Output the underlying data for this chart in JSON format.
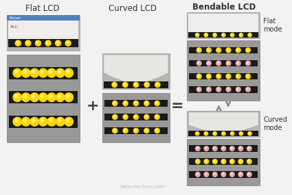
{
  "bg_color": "#f2f2f2",
  "flat_lcd_label": "Flat LCD",
  "curved_lcd_label": "Curved LCD",
  "bendable_lcd_label": "Bendable LCD",
  "flat_mode_label": "Flat\nmode",
  "curved_mode_label": "Curved\nmode",
  "panel_label": "Panel",
  "blu_label": "BLU",
  "yellow_color": "#FFD700",
  "pink_color": "#E8A8A8",
  "dark_strip_color": "#1a1a1a",
  "gray_plan_color": "#999999",
  "gray_sec_color": "#b5b5b5",
  "blue_panel_color": "#5080C0",
  "white_area_color": "#f0eeec",
  "curved_fill_color": "#e8e6e0",
  "arrow_color": "#909090",
  "watermark": "www.elecfans.com",
  "plus_sign": "+",
  "equals_sign": "="
}
